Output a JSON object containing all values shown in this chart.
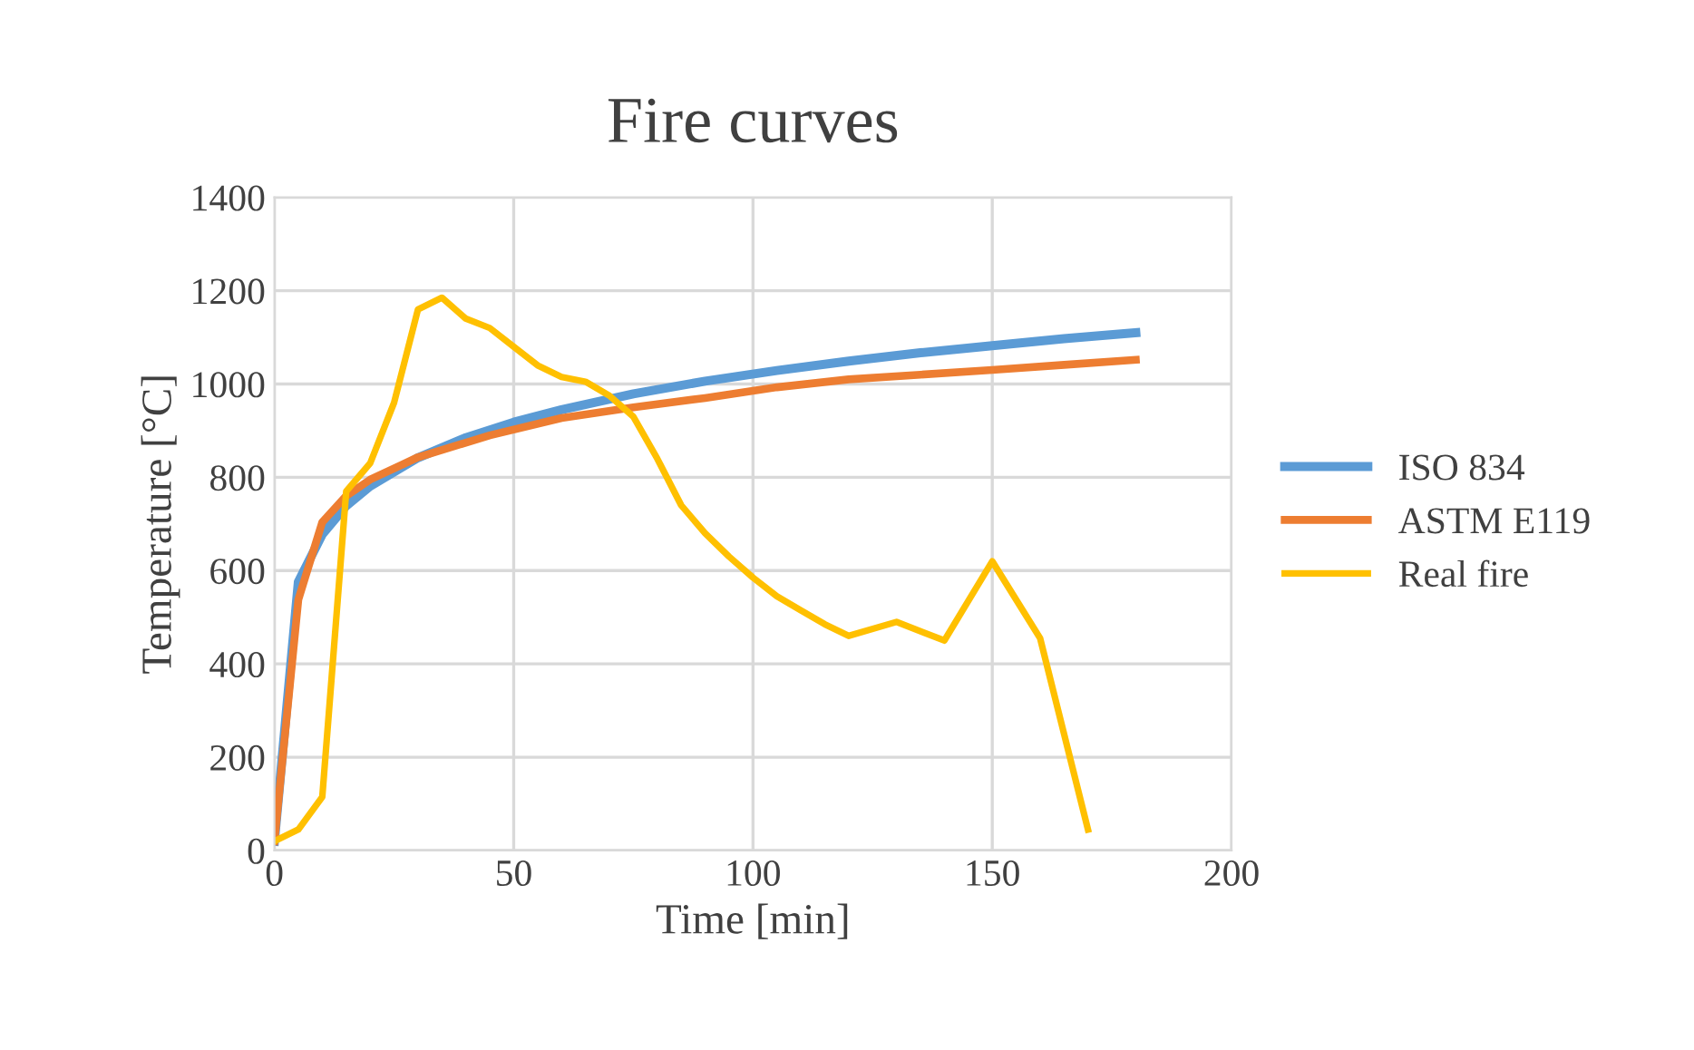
{
  "chart_data": {
    "type": "line",
    "title": "Fire curves",
    "xlabel": "Time [min]",
    "ylabel": "Temperature [°C]",
    "xlim": [
      0,
      200
    ],
    "xticks": [
      0,
      50,
      100,
      150,
      200
    ],
    "ylim": [
      0,
      1400
    ],
    "yticks": [
      0,
      200,
      400,
      600,
      800,
      1000,
      1200,
      1400
    ],
    "grid": true,
    "legend": "right",
    "marker": "none",
    "line_style": "solid",
    "series": [
      {
        "name": "ISO 834",
        "color": "#5b9bd5",
        "x": [
          0,
          5,
          10,
          15,
          20,
          30,
          40,
          50,
          60,
          75,
          90,
          105,
          120,
          135,
          150,
          165,
          180
        ],
        "values": [
          20,
          576,
          678,
          739,
          781,
          842,
          885,
          918,
          945,
          979,
          1006,
          1029,
          1049,
          1067,
          1082,
          1097,
          1110
        ]
      },
      {
        "name": "ASTM E119",
        "color": "#ed7d31",
        "x": [
          0,
          5,
          10,
          15,
          20,
          30,
          45,
          60,
          75,
          90,
          105,
          120,
          135,
          150,
          165,
          180
        ],
        "values": [
          20,
          538,
          704,
          760,
          795,
          843,
          890,
          927,
          950,
          970,
          993,
          1010,
          1020,
          1030,
          1041,
          1052
        ]
      },
      {
        "name": "Real fire",
        "color": "#ffc000",
        "x": [
          0,
          5,
          10,
          15,
          20,
          25,
          30,
          35,
          40,
          45,
          50,
          55,
          60,
          65,
          70,
          75,
          80,
          85,
          90,
          95,
          100,
          105,
          110,
          115,
          120,
          130,
          140,
          150,
          160,
          170
        ],
        "values": [
          20,
          45,
          115,
          770,
          830,
          960,
          1160,
          1185,
          1140,
          1120,
          1080,
          1040,
          1015,
          1005,
          975,
          930,
          840,
          740,
          680,
          630,
          585,
          545,
          515,
          485,
          460,
          490,
          450,
          620,
          455,
          45
        ]
      }
    ]
  }
}
